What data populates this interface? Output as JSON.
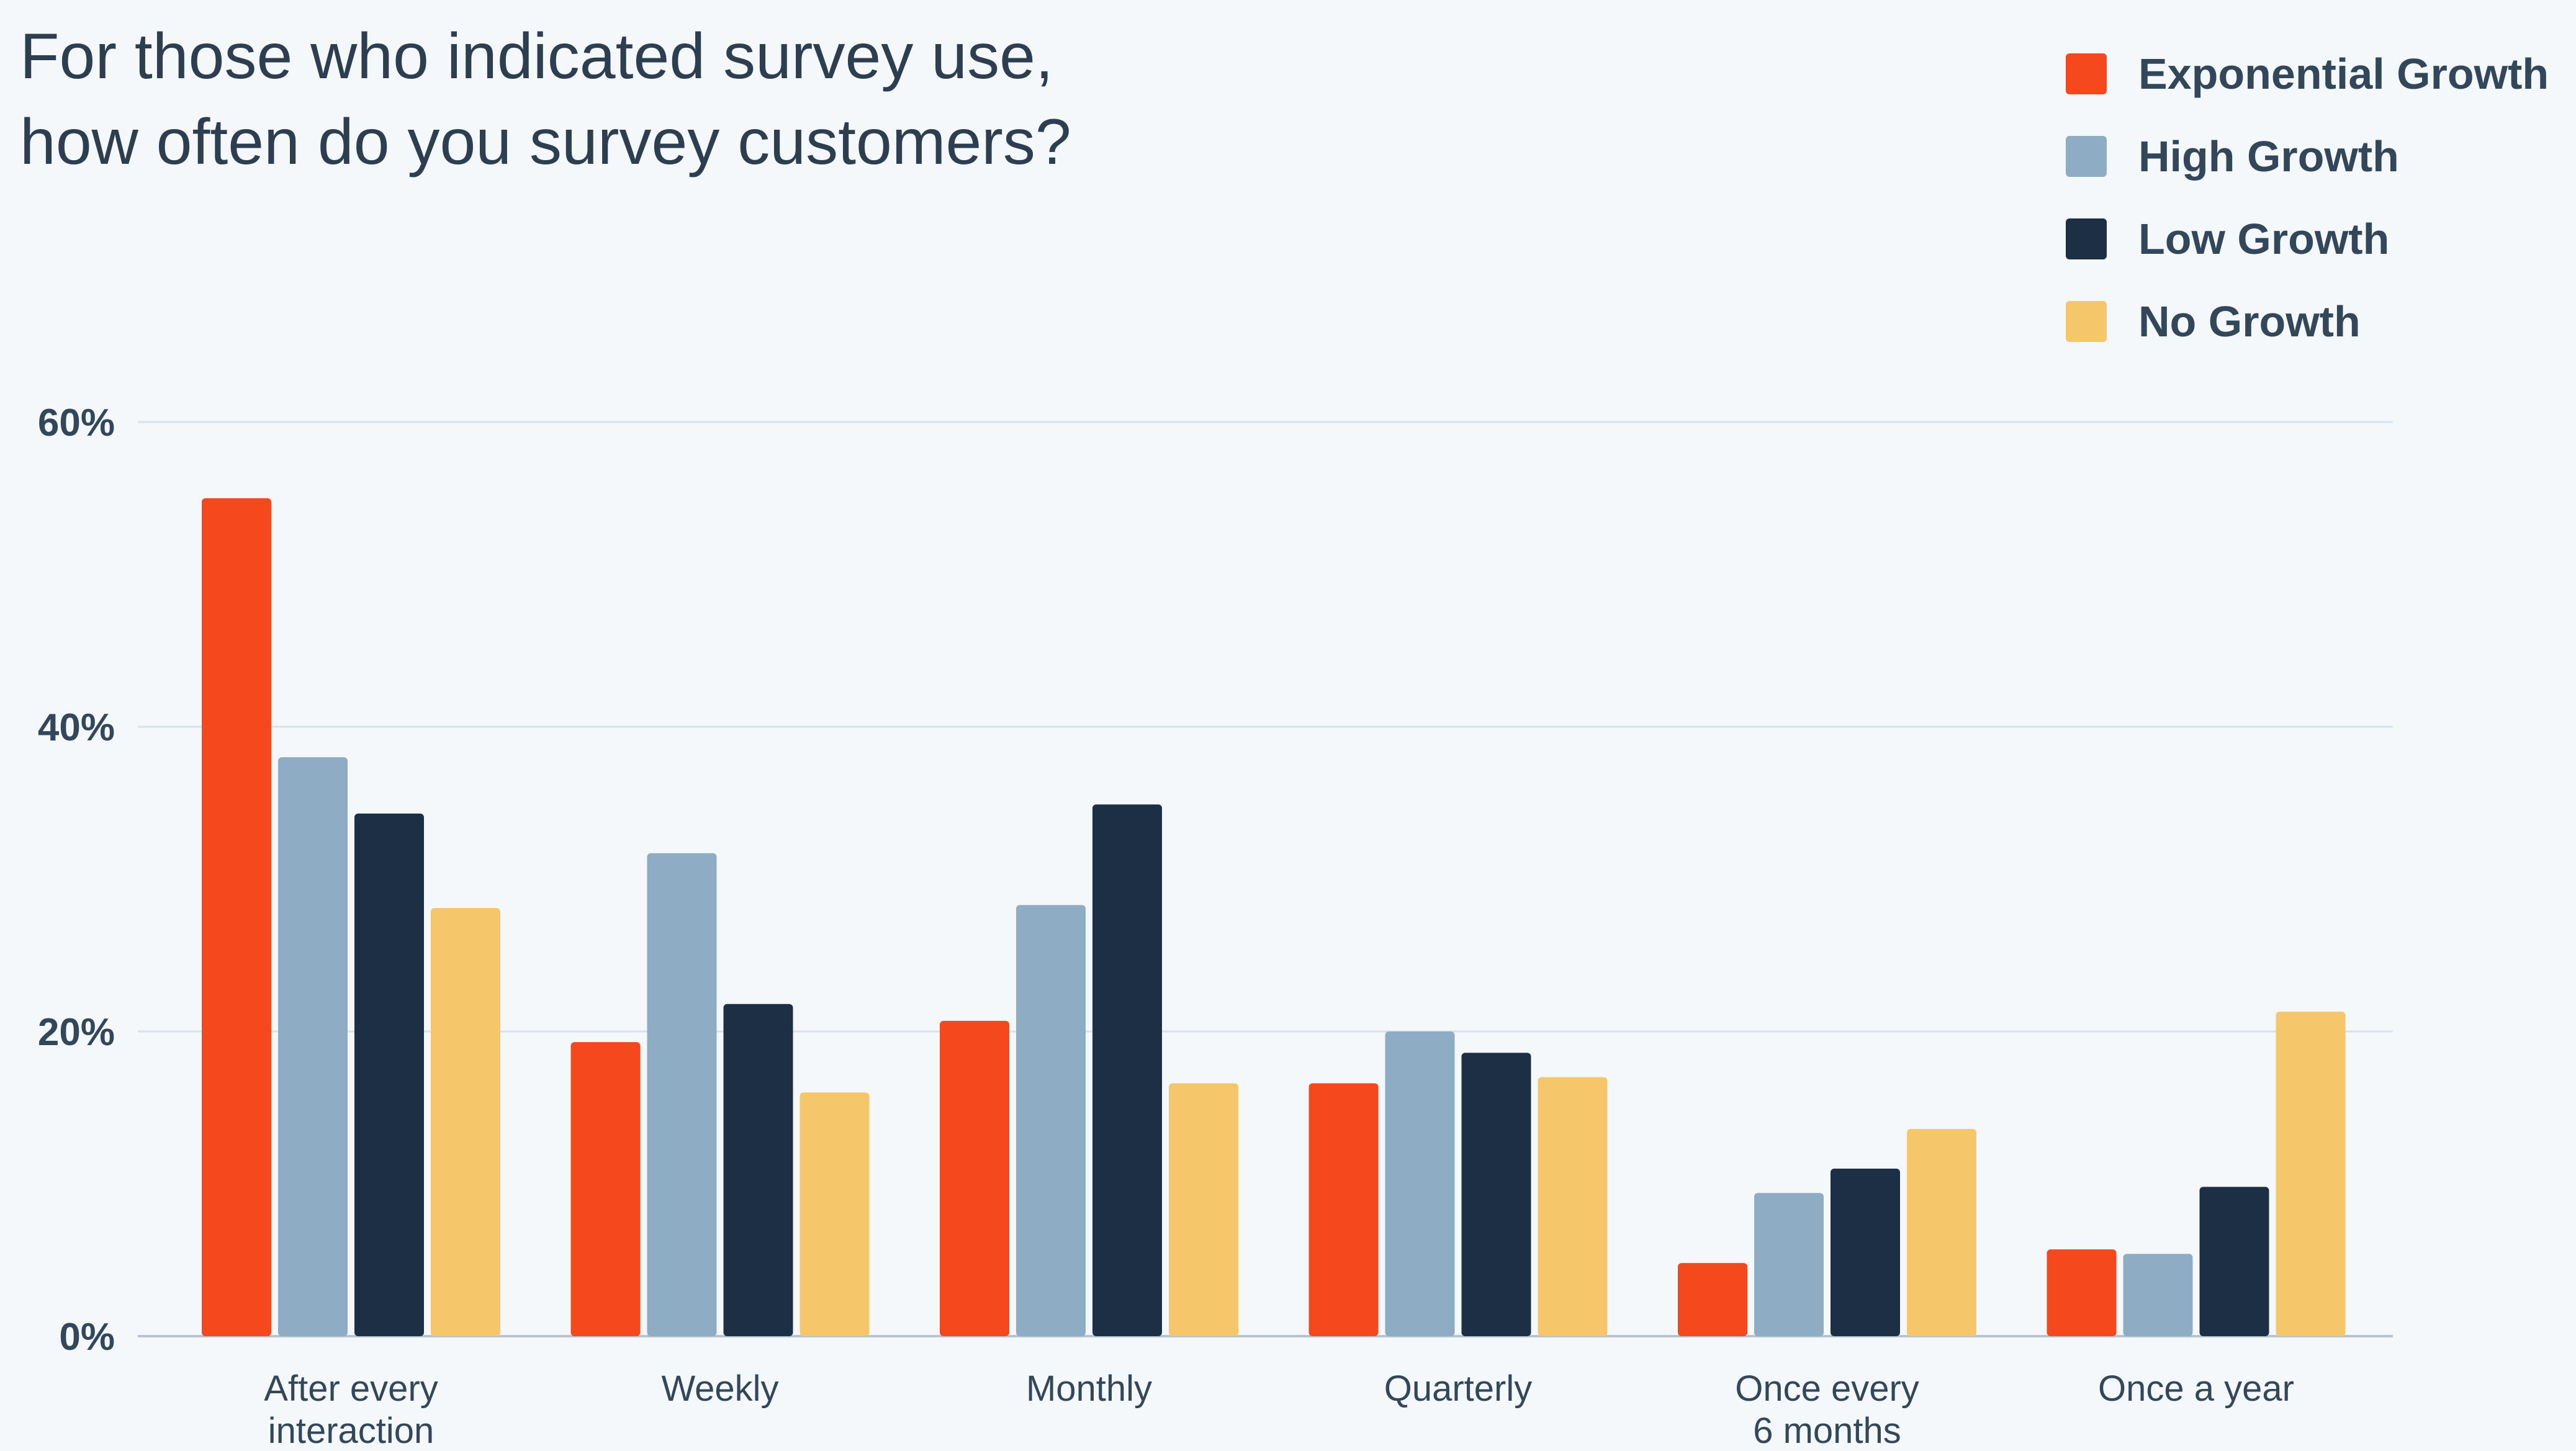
{
  "title_lines": [
    "For those who indicated survey use,",
    "how often do you survey customers?"
  ],
  "chart_data": {
    "type": "bar",
    "title": "For those who indicated survey use, how often do you survey customers?",
    "categories": [
      [
        "After every",
        "interaction"
      ],
      [
        "Weekly"
      ],
      [
        "Monthly"
      ],
      [
        "Quarterly"
      ],
      [
        "Once every",
        "6 months"
      ],
      [
        "Once a year"
      ]
    ],
    "series": [
      {
        "name": "Exponential Growth",
        "color": "#f5481c",
        "values": [
          55,
          19.3,
          20.7,
          16.6,
          4.8,
          5.7
        ]
      },
      {
        "name": "High Growth",
        "color": "#8facc5",
        "values": [
          38,
          31.7,
          28.3,
          20,
          9.4,
          5.4
        ]
      },
      {
        "name": "Low Growth",
        "color": "#1c2f45",
        "values": [
          34.3,
          21.8,
          34.9,
          18.6,
          11,
          9.8
        ]
      },
      {
        "name": "No Growth",
        "color": "#f6c66a",
        "values": [
          28.1,
          16,
          16.6,
          17,
          13.6,
          21.3
        ]
      }
    ],
    "yticks": [
      "0%",
      "20%",
      "40%",
      "60%"
    ],
    "ytick_values": [
      0,
      20,
      40,
      60
    ],
    "ylim": [
      0,
      60
    ],
    "grid": true,
    "legend_position": "top-right"
  }
}
